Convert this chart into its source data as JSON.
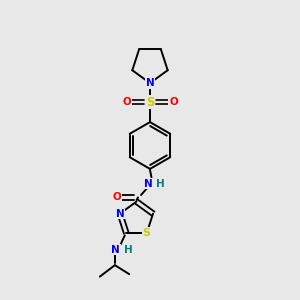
{
  "bg_color": "#e8e8e8",
  "bond_color": "#000000",
  "atom_colors": {
    "N_blue": "#0000FF",
    "O_red": "#FF0000",
    "S_yellow": "#CCCC00",
    "NH_teal": "#008080",
    "NH_blue": "#0000FF"
  },
  "figsize": [
    3.0,
    3.0
  ],
  "dpi": 100,
  "xlim": [
    0,
    10
  ],
  "ylim": [
    0,
    10
  ]
}
